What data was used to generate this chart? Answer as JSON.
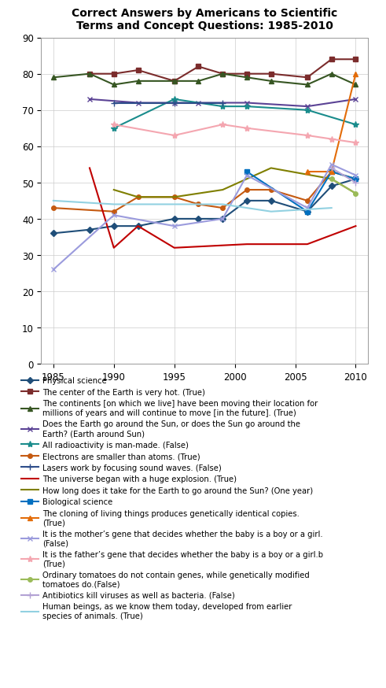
{
  "title": "Correct Answers by Americans to Scientific\nTerms and Concept Questions: 1985-2010",
  "xlim": [
    1984,
    2011
  ],
  "ylim": [
    0,
    90
  ],
  "yticks": [
    0,
    10,
    20,
    30,
    40,
    50,
    60,
    70,
    80,
    90
  ],
  "xticks": [
    1985,
    1990,
    1995,
    2000,
    2005,
    2010
  ],
  "series": [
    {
      "label": "Physical science",
      "color": "#1f4e79",
      "marker": "D",
      "markersize": 4,
      "linewidth": 1.5,
      "years": [
        1985,
        1988,
        1990,
        1992,
        1995,
        1997,
        1999,
        2001,
        2003,
        2006,
        2008,
        2010
      ],
      "values": [
        36,
        37,
        38,
        38,
        40,
        40,
        40,
        45,
        45,
        42,
        49,
        51
      ]
    },
    {
      "label": "The center of the Earth is very hot. (True)",
      "color": "#7b2c2c",
      "marker": "s",
      "markersize": 5,
      "linewidth": 1.5,
      "years": [
        1988,
        1990,
        1992,
        1995,
        1997,
        1999,
        2001,
        2003,
        2006,
        2008,
        2010
      ],
      "values": [
        80,
        80,
        81,
        78,
        82,
        80,
        80,
        80,
        79,
        84,
        84
      ]
    },
    {
      "label": "The continents [on which we live] have been moving their location for\nmillions of years and will continue to move [in the future]. (True)",
      "color": "#375623",
      "marker": "^",
      "markersize": 5,
      "linewidth": 1.5,
      "years": [
        1985,
        1988,
        1990,
        1992,
        1995,
        1997,
        1999,
        2001,
        2003,
        2006,
        2008,
        2010
      ],
      "values": [
        79,
        80,
        77,
        78,
        78,
        78,
        80,
        79,
        78,
        77,
        80,
        77
      ]
    },
    {
      "label": "Does the Earth go around the Sun, or does the Sun go around the\nEarth? (Earth around Sun)",
      "color": "#5b4395",
      "marker": "x",
      "markersize": 5,
      "linewidth": 1.5,
      "years": [
        1988,
        1992,
        1995,
        1997,
        2001,
        2006,
        2010
      ],
      "values": [
        73,
        72,
        72,
        72,
        72,
        71,
        73
      ]
    },
    {
      "label": "All radioactivity is man-made. (False)",
      "color": "#1a8c8c",
      "marker": "*",
      "markersize": 6,
      "linewidth": 1.5,
      "years": [
        1990,
        1995,
        1999,
        2001,
        2006,
        2010
      ],
      "values": [
        65,
        73,
        71,
        71,
        70,
        66
      ]
    },
    {
      "label": "Electrons are smaller than atoms. (True)",
      "color": "#c55a11",
      "marker": "o",
      "markersize": 4,
      "linewidth": 1.5,
      "years": [
        1985,
        1990,
        1992,
        1995,
        1997,
        1999,
        2001,
        2003,
        2006,
        2008,
        2010
      ],
      "values": [
        43,
        42,
        46,
        46,
        44,
        43,
        48,
        48,
        45,
        53,
        51
      ]
    },
    {
      "label": "Lasers work by focusing sound waves. (False)",
      "color": "#2e4d8a",
      "marker": "+",
      "markersize": 6,
      "linewidth": 1.5,
      "years": [
        1990,
        1995,
        1999
      ],
      "values": [
        72,
        72,
        72
      ]
    },
    {
      "label": "The universe began with a huge explosion. (True)",
      "color": "#c00000",
      "marker": null,
      "markersize": 4,
      "linewidth": 1.5,
      "years": [
        1988,
        1990,
        1992,
        1995,
        2001,
        2003,
        2006,
        2010
      ],
      "values": [
        54,
        32,
        38,
        32,
        33,
        33,
        33,
        38
      ]
    },
    {
      "label": "How long does it take for the Earth to go around the Sun? (One year)",
      "color": "#7f7f00",
      "marker": null,
      "markersize": 4,
      "linewidth": 1.5,
      "years": [
        1990,
        1992,
        1995,
        1997,
        1999,
        2003,
        2008,
        2010
      ],
      "values": [
        48,
        46,
        46,
        47,
        48,
        54,
        51,
        47
      ]
    },
    {
      "label": "Biological science",
      "color": "#0070c0",
      "marker": "s",
      "markersize": 5,
      "linewidth": 1.5,
      "years": [
        2001,
        2006,
        2008,
        2010
      ],
      "values": [
        53,
        42,
        53,
        51
      ]
    },
    {
      "label": "The cloning of living things produces genetically identical copies.\n(True)",
      "color": "#e36c09",
      "marker": "^",
      "markersize": 5,
      "linewidth": 1.5,
      "years": [
        2006,
        2008,
        2010
      ],
      "values": [
        53,
        53,
        80
      ]
    },
    {
      "label": "It is the mother’s gene that decides whether the baby is a boy or a girl.\n(False)",
      "color": "#9b9bdd",
      "marker": "x",
      "markersize": 5,
      "linewidth": 1.5,
      "years": [
        1985,
        1990,
        1995,
        1999,
        2001,
        2006,
        2008,
        2010
      ],
      "values": [
        26,
        41,
        38,
        40,
        52,
        43,
        55,
        52
      ]
    },
    {
      "label": "It is the father’s gene that decides whether the baby is a boy or a girl.b\n(True)",
      "color": "#f4a6b0",
      "marker": "*",
      "markersize": 6,
      "linewidth": 1.5,
      "years": [
        1990,
        1995,
        1999,
        2001,
        2006,
        2008,
        2010
      ],
      "values": [
        66,
        63,
        66,
        65,
        63,
        62,
        61
      ]
    },
    {
      "label": "Ordinary tomatoes do not contain genes, while genetically modified\ntomatoes do.(False)",
      "color": "#9bbb59",
      "marker": "o",
      "markersize": 4,
      "linewidth": 1.5,
      "years": [
        2008,
        2010
      ],
      "values": [
        51,
        47
      ]
    },
    {
      "label": "Antibiotics kill viruses as well as bacteria. (False)",
      "color": "#b3a2d4",
      "marker": "+",
      "markersize": 6,
      "linewidth": 1.5,
      "years": [
        2008,
        2010
      ],
      "values": [
        54,
        50
      ]
    },
    {
      "label": "Human beings, as we know them today, developed from earlier\nspecies of animals. (True)",
      "color": "#92d1e1",
      "marker": null,
      "markersize": 4,
      "linewidth": 1.5,
      "years": [
        1985,
        1990,
        1995,
        1999,
        2003,
        2008
      ],
      "values": [
        45,
        44,
        44,
        44,
        42,
        43
      ]
    }
  ]
}
